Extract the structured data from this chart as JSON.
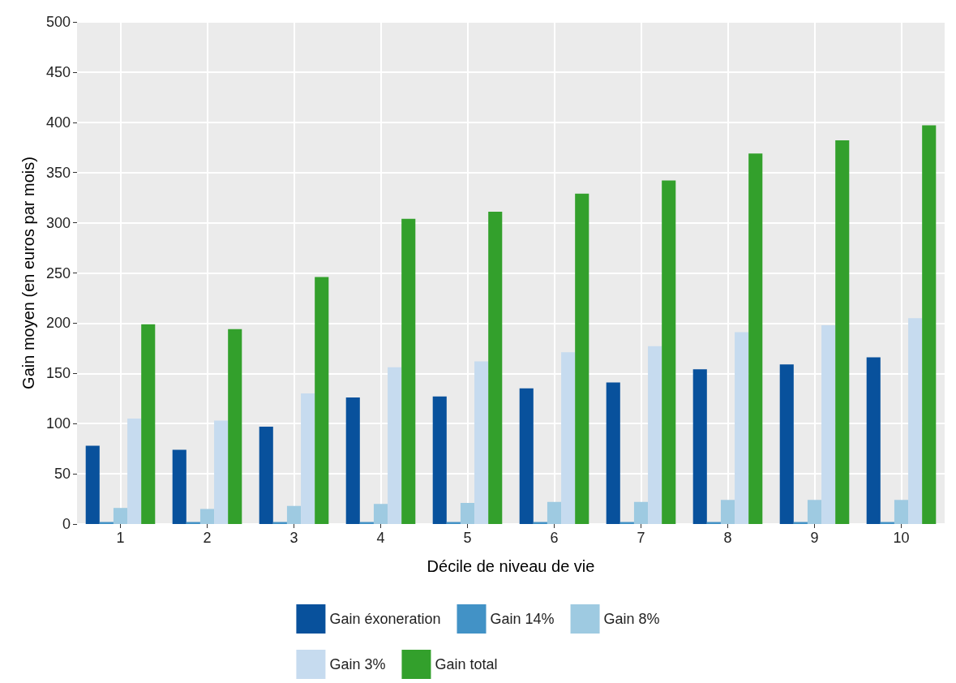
{
  "chart_data": {
    "type": "bar",
    "xlabel": "Décile de niveau de vie",
    "ylabel": "Gain moyen (en euros par mois)",
    "categories": [
      "1",
      "2",
      "3",
      "4",
      "5",
      "6",
      "7",
      "8",
      "9",
      "10"
    ],
    "series": [
      {
        "name": "Gain éxoneration",
        "color": "#08519c",
        "values": [
          78,
          74,
          97,
          126,
          127,
          135,
          141,
          154,
          159,
          166
        ]
      },
      {
        "name": "Gain 14%",
        "color": "#4292c6",
        "values": [
          2,
          2,
          2,
          2,
          2,
          2,
          2,
          2,
          2,
          2
        ]
      },
      {
        "name": "Gain 8%",
        "color": "#9ecae1",
        "values": [
          16,
          15,
          18,
          20,
          21,
          22,
          22,
          24,
          24,
          24
        ]
      },
      {
        "name": "Gain 3%",
        "color": "#c6dbef",
        "values": [
          105,
          103,
          130,
          156,
          162,
          171,
          177,
          191,
          198,
          205
        ]
      },
      {
        "name": "Gain total",
        "color": "#33a02c",
        "values": [
          199,
          194,
          246,
          304,
          311,
          329,
          342,
          369,
          382,
          397
        ]
      }
    ],
    "ylim": [
      0,
      500
    ],
    "yticks": [
      0,
      50,
      100,
      150,
      200,
      250,
      300,
      350,
      400,
      450,
      500
    ],
    "grid": true,
    "legend": "bottom"
  }
}
